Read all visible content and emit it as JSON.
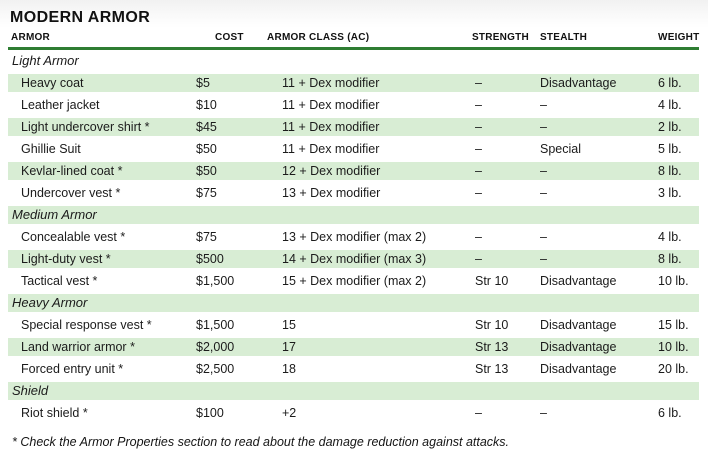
{
  "page": {
    "title": "MODERN ARMOR",
    "footnote": "* Check the Armor Properties section to read about the damage reduction against attacks."
  },
  "colors": {
    "accent_green": "#2e7d32",
    "row_stripe_green": "#d8edd4"
  },
  "table": {
    "columns": [
      {
        "key": "armor",
        "label": "ARMOR"
      },
      {
        "key": "cost",
        "label": "COST"
      },
      {
        "key": "ac",
        "label": "ARMOR CLASS (AC)"
      },
      {
        "key": "strength",
        "label": "STRENGTH"
      },
      {
        "key": "stealth",
        "label": "STEALTH"
      },
      {
        "key": "weight",
        "label": "WEIGHT"
      }
    ],
    "rows": [
      {
        "kind": "section",
        "label": "Light Armor"
      },
      {
        "kind": "item",
        "armor": "Heavy coat",
        "cost": "$5",
        "ac": "11 + Dex modifier",
        "strength": "–",
        "stealth": "Disadvantage",
        "weight": "6 lb."
      },
      {
        "kind": "item",
        "armor": "Leather jacket",
        "cost": "$10",
        "ac": "11 + Dex modifier",
        "strength": "–",
        "stealth": "–",
        "weight": "4 lb."
      },
      {
        "kind": "item",
        "armor": "Light undercover shirt *",
        "cost": "$45",
        "ac": "11 + Dex modifier",
        "strength": "–",
        "stealth": "–",
        "weight": "2 lb."
      },
      {
        "kind": "item",
        "armor": "Ghillie Suit",
        "cost": "$50",
        "ac": "11 + Dex modifier",
        "strength": "–",
        "stealth": "Special",
        "weight": "5 lb."
      },
      {
        "kind": "item",
        "armor": "Kevlar-lined coat *",
        "cost": "$50",
        "ac": "12 + Dex modifier",
        "strength": "–",
        "stealth": "–",
        "weight": "8 lb."
      },
      {
        "kind": "item",
        "armor": "Undercover vest *",
        "cost": "$75",
        "ac": "13 + Dex modifier",
        "strength": "–",
        "stealth": "–",
        "weight": "3 lb."
      },
      {
        "kind": "section",
        "label": "Medium Armor"
      },
      {
        "kind": "item",
        "armor": "Concealable vest *",
        "cost": "$75",
        "ac": "13 + Dex modifier (max 2)",
        "strength": "–",
        "stealth": "–",
        "weight": "4 lb."
      },
      {
        "kind": "item",
        "armor": "Light-duty vest *",
        "cost": "$500",
        "ac": "14 + Dex modifier (max 3)",
        "strength": "–",
        "stealth": "–",
        "weight": "8 lb."
      },
      {
        "kind": "item",
        "armor": "Tactical vest *",
        "cost": "$1,500",
        "ac": "15 + Dex modifier (max 2)",
        "strength": "Str 10",
        "stealth": "Disadvantage",
        "weight": "10 lb."
      },
      {
        "kind": "section",
        "label": "Heavy Armor"
      },
      {
        "kind": "item",
        "armor": "Special response vest *",
        "cost": "$1,500",
        "ac": "15",
        "strength": "Str 10",
        "stealth": "Disadvantage",
        "weight": "15 lb."
      },
      {
        "kind": "item",
        "armor": "Land warrior armor *",
        "cost": "$2,000",
        "ac": "17",
        "strength": "Str 13",
        "stealth": "Disadvantage",
        "weight": "10 lb."
      },
      {
        "kind": "item",
        "armor": "Forced entry unit *",
        "cost": "$2,500",
        "ac": "18",
        "strength": "Str 13",
        "stealth": "Disadvantage",
        "weight": "20 lb."
      },
      {
        "kind": "section",
        "label": "Shield"
      },
      {
        "kind": "item",
        "armor": "Riot shield *",
        "cost": "$100",
        "ac": "+2",
        "strength": "–",
        "stealth": "–",
        "weight": "6 lb."
      }
    ]
  }
}
